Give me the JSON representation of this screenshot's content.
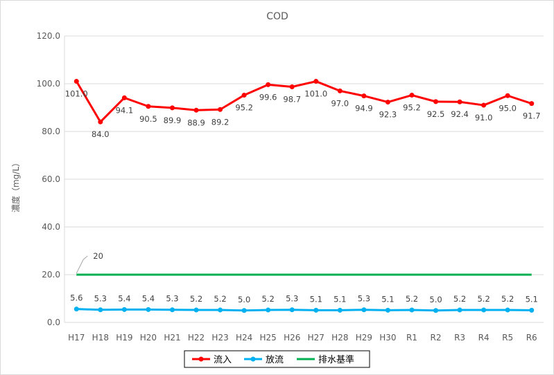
{
  "chart_data": {
    "type": "line",
    "title": "COD",
    "xlabel": "",
    "ylabel": "濃度（mg/L）",
    "ylim": [
      0,
      120
    ],
    "yticks": [
      "0.0",
      "20.0",
      "40.0",
      "60.0",
      "80.0",
      "100.0",
      "120.0"
    ],
    "categories": [
      "H17",
      "H18",
      "H19",
      "H20",
      "H21",
      "H22",
      "H23",
      "H24",
      "H25",
      "H26",
      "H27",
      "H28",
      "H29",
      "H30",
      "R1",
      "R2",
      "R3",
      "R4",
      "R5",
      "R6"
    ],
    "grid": true,
    "legend_position": "bottom",
    "series": [
      {
        "name": "流入",
        "color": "#ff0000",
        "values": [
          101.0,
          84.0,
          94.1,
          90.5,
          89.9,
          88.9,
          89.2,
          95.2,
          99.6,
          98.7,
          101.0,
          97.0,
          94.9,
          92.3,
          95.2,
          92.5,
          92.4,
          91.0,
          95.0,
          91.7
        ],
        "labels": [
          "101.0",
          "84.0",
          "94.1",
          "90.5",
          "89.9",
          "88.9",
          "89.2",
          "95.2",
          "99.6",
          "98.7",
          "101.0",
          "97.0",
          "94.9",
          "92.3",
          "95.2",
          "92.5",
          "92.4",
          "91.0",
          "95.0",
          "91.7"
        ]
      },
      {
        "name": "放流",
        "color": "#00b0f0",
        "values": [
          5.6,
          5.3,
          5.4,
          5.4,
          5.3,
          5.2,
          5.2,
          5.0,
          5.2,
          5.3,
          5.1,
          5.1,
          5.3,
          5.1,
          5.2,
          5.0,
          5.2,
          5.2,
          5.2,
          5.1
        ],
        "labels": [
          "5.6",
          "5.3",
          "5.4",
          "5.4",
          "5.3",
          "5.2",
          "5.2",
          "5.0",
          "5.2",
          "5.3",
          "5.1",
          "5.1",
          "5.3",
          "5.1",
          "5.2",
          "5.0",
          "5.2",
          "5.2",
          "5.2",
          "5.1"
        ]
      },
      {
        "name": "排水基準",
        "color": "#00b050",
        "values": [
          20,
          20,
          20,
          20,
          20,
          20,
          20,
          20,
          20,
          20,
          20,
          20,
          20,
          20,
          20,
          20,
          20,
          20,
          20,
          20
        ]
      }
    ],
    "annotations": [
      {
        "series": "排水基準",
        "index": 0,
        "text": "20"
      }
    ]
  }
}
